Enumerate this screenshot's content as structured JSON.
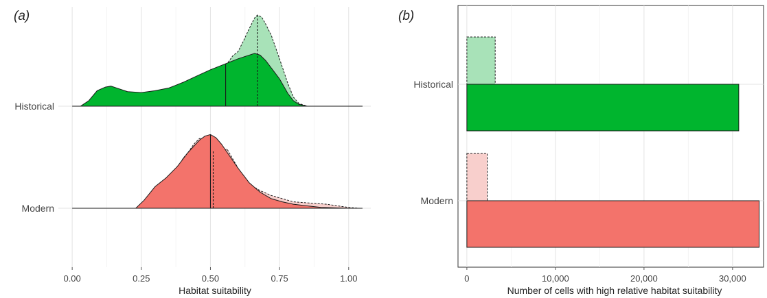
{
  "chart_data": [
    {
      "panel_label": "(a)",
      "type": "area",
      "subtype": "ridgeline-density",
      "xlabel": "Habitat suitability",
      "ylabel": "",
      "xlim": [
        -0.05,
        1.08
      ],
      "xticks": [
        0,
        0.25,
        0.5,
        0.75,
        1.0
      ],
      "xtick_labels": [
        "0.00",
        "0.25",
        "0.50",
        "0.75",
        "1.00"
      ],
      "grid": true,
      "categories": [
        "Historical",
        "Modern"
      ],
      "series": [
        {
          "group": "Historical",
          "variant": "solid",
          "color": "#00b52e",
          "median": 0.555,
          "x": [
            0.03,
            0.06,
            0.09,
            0.12,
            0.14,
            0.17,
            0.2,
            0.25,
            0.3,
            0.35,
            0.4,
            0.45,
            0.5,
            0.55,
            0.6,
            0.63,
            0.66,
            0.68,
            0.7,
            0.72,
            0.75,
            0.78,
            0.8,
            0.82,
            0.85,
            1.05
          ],
          "y": [
            0.0,
            0.06,
            0.17,
            0.21,
            0.22,
            0.19,
            0.16,
            0.15,
            0.17,
            0.2,
            0.26,
            0.33,
            0.4,
            0.46,
            0.52,
            0.55,
            0.58,
            0.56,
            0.5,
            0.42,
            0.3,
            0.14,
            0.06,
            0.02,
            0.0,
            0.0
          ]
        },
        {
          "group": "Historical",
          "variant": "dashed",
          "color": "#a8e2b8",
          "median": 0.67,
          "x": [
            0.35,
            0.4,
            0.44,
            0.48,
            0.52,
            0.55,
            0.58,
            0.6,
            0.62,
            0.64,
            0.66,
            0.67,
            0.685,
            0.7,
            0.72,
            0.75,
            0.78,
            0.8,
            0.82,
            0.85
          ],
          "y": [
            0.0,
            0.04,
            0.12,
            0.2,
            0.3,
            0.42,
            0.55,
            0.6,
            0.72,
            0.85,
            0.97,
            1.0,
            0.98,
            0.9,
            0.78,
            0.52,
            0.25,
            0.1,
            0.03,
            0.0
          ]
        },
        {
          "group": "Modern",
          "variant": "solid",
          "color": "#f3736b",
          "median": 0.5,
          "x": [
            0.23,
            0.26,
            0.3,
            0.34,
            0.38,
            0.42,
            0.46,
            0.48,
            0.5,
            0.52,
            0.54,
            0.56,
            0.6,
            0.64,
            0.68,
            0.72,
            0.76,
            0.8,
            0.85,
            0.9,
            1.0
          ],
          "y": [
            0.0,
            0.1,
            0.27,
            0.38,
            0.52,
            0.7,
            0.85,
            0.9,
            0.92,
            0.88,
            0.8,
            0.7,
            0.5,
            0.32,
            0.2,
            0.12,
            0.08,
            0.05,
            0.03,
            0.01,
            0.0
          ]
        },
        {
          "group": "Modern",
          "variant": "dashed",
          "color": "#f8cfcc",
          "median": 0.51,
          "x": [
            0.23,
            0.27,
            0.3,
            0.33,
            0.36,
            0.38,
            0.4,
            0.42,
            0.44,
            0.46,
            0.48,
            0.5,
            0.52,
            0.54,
            0.56,
            0.58,
            0.6,
            0.64,
            0.68,
            0.72,
            0.76,
            0.8,
            0.84,
            0.88,
            0.92,
            0.96,
            1.0,
            1.04
          ],
          "y": [
            0.0,
            0.06,
            0.1,
            0.08,
            0.2,
            0.45,
            0.62,
            0.7,
            0.8,
            0.87,
            0.87,
            0.78,
            0.65,
            0.7,
            0.74,
            0.62,
            0.5,
            0.3,
            0.22,
            0.16,
            0.12,
            0.08,
            0.07,
            0.06,
            0.05,
            0.03,
            0.01,
            0.0
          ]
        }
      ]
    },
    {
      "panel_label": "(b)",
      "type": "bar",
      "orientation": "horizontal",
      "xlabel": "Number of cells with high relative habitat suitability",
      "ylabel": "",
      "xlim": [
        -1000,
        33500
      ],
      "xticks": [
        0,
        10000,
        20000,
        30000
      ],
      "xtick_labels": [
        "0",
        "10,000",
        "20,000",
        "30,000"
      ],
      "grid": true,
      "categories": [
        "Historical",
        "Modern"
      ],
      "series": [
        {
          "variant": "dashed",
          "values": [
            3200,
            2300
          ],
          "colors": [
            "#a8e2b8",
            "#f8cfcc"
          ]
        },
        {
          "variant": "solid",
          "values": [
            30700,
            33000
          ],
          "colors": [
            "#00b52e",
            "#f3736b"
          ]
        }
      ]
    }
  ]
}
